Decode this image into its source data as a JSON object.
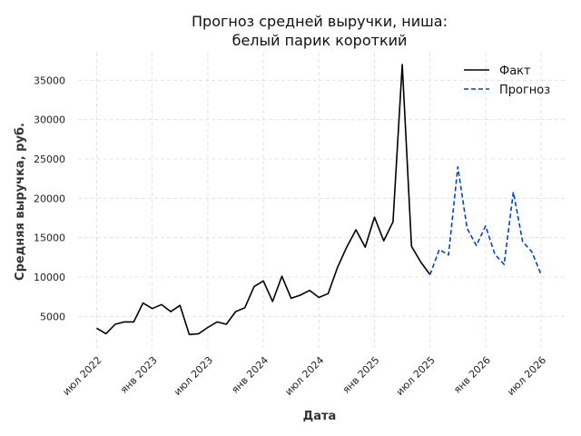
{
  "chart_data": {
    "type": "line",
    "title_lines": [
      "Прогноз средней выручки, ниша:",
      "белый парик короткий"
    ],
    "xlabel": "Дата",
    "ylabel": "Средняя выручка, руб.",
    "x_ticks": [
      "июл 2022",
      "янв 2023",
      "июл 2023",
      "янв 2024",
      "июл 2024",
      "янв 2025",
      "июл 2025",
      "янв 2026",
      "июл 2026"
    ],
    "y_ticks": [
      5000,
      10000,
      15000,
      20000,
      25000,
      30000,
      35000
    ],
    "ylim": [
      1000,
      38500
    ],
    "grid": true,
    "legend_position": "top-right",
    "series": [
      {
        "name": "Факт",
        "color": "#000000",
        "style": "solid",
        "x": [
          "2022-07",
          "2022-08",
          "2022-09",
          "2022-10",
          "2022-11",
          "2022-12",
          "2023-01",
          "2023-02",
          "2023-03",
          "2023-04",
          "2023-05",
          "2023-06",
          "2023-07",
          "2023-08",
          "2023-09",
          "2023-10",
          "2023-11",
          "2023-12",
          "2024-01",
          "2024-02",
          "2024-03",
          "2024-04",
          "2024-05",
          "2024-06",
          "2024-07",
          "2024-08",
          "2024-09",
          "2024-10",
          "2024-11",
          "2024-12",
          "2025-01",
          "2025-02",
          "2025-03",
          "2025-04",
          "2025-05",
          "2025-06",
          "2025-07"
        ],
        "values": [
          3500,
          2800,
          4000,
          4300,
          4300,
          6700,
          6000,
          6500,
          5600,
          6400,
          2700,
          2800,
          3600,
          4300,
          4000,
          5600,
          6100,
          8800,
          9500,
          6900,
          10100,
          7300,
          7700,
          8300,
          7400,
          7900,
          11200,
          13800,
          16000,
          13800,
          17600,
          14600,
          17000,
          37000,
          13900,
          11900,
          10300
        ]
      },
      {
        "name": "Прогноз",
        "color": "#0044cc",
        "style": "dashed",
        "x": [
          "2025-07",
          "2025-08",
          "2025-09",
          "2025-10",
          "2025-11",
          "2025-12",
          "2026-01",
          "2026-02",
          "2026-03",
          "2026-04",
          "2026-05",
          "2026-06",
          "2026-07"
        ],
        "values": [
          10300,
          13500,
          12800,
          24000,
          16200,
          14000,
          16500,
          12900,
          11600,
          20800,
          14500,
          13200,
          10300
        ]
      }
    ]
  }
}
